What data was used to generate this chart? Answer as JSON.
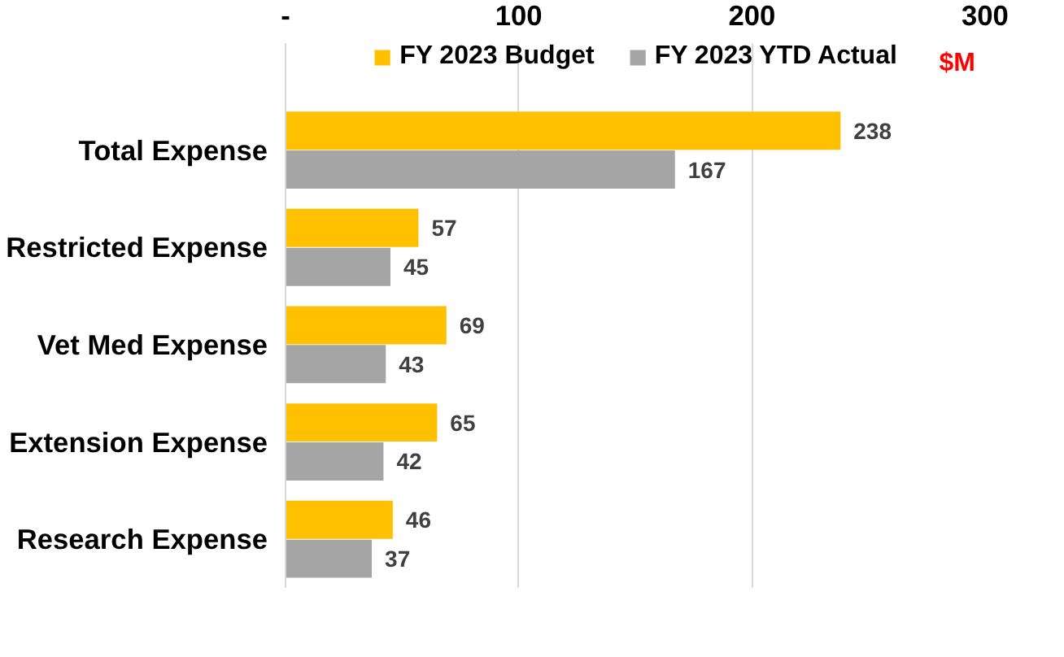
{
  "chart_data": {
    "type": "bar",
    "orientation": "horizontal",
    "xlabel": "$M",
    "categories": [
      "Total Expense",
      "Restricted Expense",
      "Vet Med Expense",
      "Extension Expense",
      "Research Expense"
    ],
    "series": [
      {
        "name": "FY 2023 Budget",
        "color": "#ffc000",
        "values": [
          238,
          57,
          69,
          65,
          46
        ]
      },
      {
        "name": "FY 2023 YTD Actual",
        "color": "#a5a5a5",
        "values": [
          167,
          45,
          43,
          42,
          37
        ]
      }
    ],
    "xlim": [
      0,
      300
    ],
    "xticks": [
      {
        "value": 0,
        "label": "-"
      },
      100,
      200,
      300
    ],
    "grid": "x",
    "legend": "top",
    "data_labels": true
  }
}
